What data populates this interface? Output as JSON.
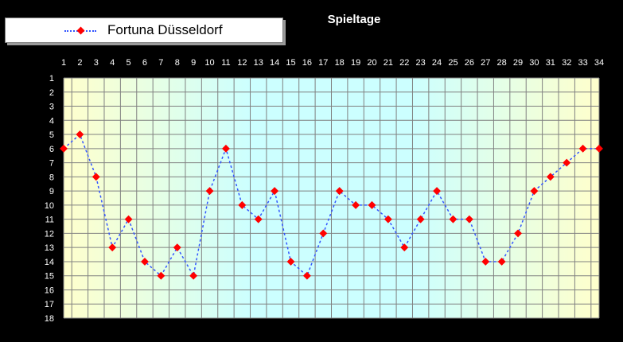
{
  "chart_data": {
    "type": "line",
    "title": "Spieltage",
    "x": [
      1,
      2,
      3,
      4,
      5,
      6,
      7,
      8,
      9,
      10,
      11,
      12,
      13,
      14,
      15,
      16,
      17,
      18,
      19,
      20,
      21,
      22,
      23,
      24,
      25,
      26,
      27,
      28,
      29,
      30,
      31,
      32,
      33,
      34
    ],
    "series": [
      {
        "name": "Fortuna Düsseldorf",
        "values": [
          6,
          5,
          8,
          13,
          11,
          14,
          15,
          13,
          15,
          9,
          6,
          10,
          11,
          9,
          14,
          15,
          12,
          9,
          10,
          10,
          11,
          13,
          11,
          9,
          11,
          11,
          14,
          14,
          12,
          9,
          8,
          7,
          6,
          6
        ]
      }
    ],
    "x_ticks": [
      1,
      2,
      3,
      4,
      5,
      6,
      7,
      8,
      9,
      10,
      11,
      12,
      13,
      14,
      15,
      16,
      17,
      18,
      19,
      20,
      21,
      22,
      23,
      24,
      25,
      26,
      27,
      28,
      29,
      30,
      31,
      32,
      33,
      34
    ],
    "y_ticks": [
      1,
      2,
      3,
      4,
      5,
      6,
      7,
      8,
      9,
      10,
      11,
      12,
      13,
      14,
      15,
      16,
      17,
      18
    ],
    "xlim": [
      1,
      34
    ],
    "ylim": [
      1,
      18
    ],
    "y_inverted": true,
    "x_axis_position": "top",
    "grid": true,
    "legend_position": "top-left",
    "colors": {
      "line": "#3355ff",
      "marker": "#ff0000",
      "grid": "#808080",
      "background": "#000000",
      "plot_gradient": [
        "#ffffcc",
        "#ccffff",
        "#ccffff",
        "#ffffcc"
      ]
    }
  }
}
